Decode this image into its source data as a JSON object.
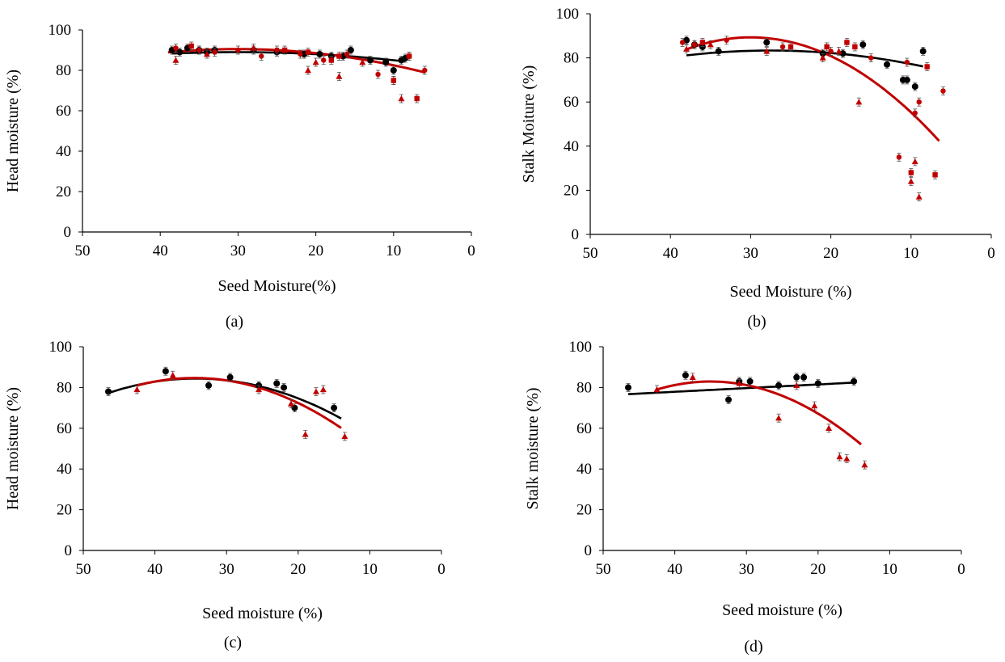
{
  "chart_data": [
    {
      "id": "a",
      "type": "scatter",
      "caption": "(a)",
      "xlabel": "Seed Moisture(%)",
      "ylabel": "Head moisture (%)",
      "xlim": [
        50,
        0
      ],
      "x_reversed": true,
      "ylim": [
        0,
        100
      ],
      "xticks": [
        "50",
        "40",
        "30",
        "20",
        "10",
        "0"
      ],
      "yticks": [
        "0",
        "20",
        "40",
        "60",
        "80",
        "100"
      ],
      "grid": false,
      "colors": {
        "black": "#000000",
        "red": "#c00000"
      },
      "series": [
        {
          "color": "black",
          "marker": "circle",
          "points": [
            [
              38.5,
              90
            ],
            [
              37.5,
              89
            ],
            [
              36.5,
              91
            ],
            [
              35,
              90
            ],
            [
              34,
              89
            ],
            [
              33,
              90
            ],
            [
              28,
              90
            ],
            [
              25,
              89
            ],
            [
              21.5,
              88
            ],
            [
              19.5,
              88
            ],
            [
              18,
              87
            ],
            [
              16.5,
              87
            ],
            [
              15.5,
              90
            ],
            [
              13,
              85
            ],
            [
              11,
              84
            ],
            [
              10,
              80
            ],
            [
              9,
              85
            ],
            [
              8.5,
              86
            ]
          ]
        },
        {
          "color": "red",
          "marker": "circle",
          "points": [
            [
              38,
              91
            ],
            [
              35,
              90
            ],
            [
              33,
              89
            ],
            [
              30,
              90
            ],
            [
              27,
              87
            ],
            [
              25,
              90
            ],
            [
              22,
              88
            ],
            [
              19,
              85
            ],
            [
              16,
              88
            ],
            [
              12,
              78
            ],
            [
              10,
              75
            ],
            [
              8,
              87
            ],
            [
              6,
              80
            ]
          ]
        },
        {
          "color": "red",
          "marker": "triangle",
          "points": [
            [
              38,
              85
            ],
            [
              34,
              88
            ],
            [
              28,
              91
            ],
            [
              21,
              80
            ],
            [
              20,
              84
            ],
            [
              17,
              77
            ],
            [
              14,
              84
            ],
            [
              9,
              66
            ]
          ]
        },
        {
          "color": "red",
          "marker": "square",
          "points": [
            [
              36,
              92
            ],
            [
              24,
              90
            ],
            [
              21,
              89
            ],
            [
              18,
              85
            ],
            [
              17,
              87
            ],
            [
              10,
              75
            ],
            [
              8,
              87
            ],
            [
              7,
              66
            ]
          ]
        }
      ],
      "fits": [
        {
          "color": "black",
          "x": [
            38.5,
            8.5
          ],
          "coef": [
            80.0,
            0.6,
            -0.01
          ]
        },
        {
          "color": "red",
          "x": [
            39,
            6
          ],
          "coef": [
            72.5,
            1.2,
            -0.02
          ]
        }
      ]
    },
    {
      "id": "b",
      "type": "scatter",
      "caption": "(b)",
      "xlabel": "Seed Moisture  (%)",
      "ylabel": "Stalk Moiture  (%)",
      "xlim": [
        50,
        0
      ],
      "x_reversed": true,
      "ylim": [
        0,
        100
      ],
      "xticks": [
        "50",
        "40",
        "30",
        "20",
        "10",
        "0"
      ],
      "yticks": [
        "0",
        "20",
        "40",
        "60",
        "80",
        "100"
      ],
      "grid": false,
      "colors": {
        "black": "#000000",
        "red": "#c00000"
      },
      "series": [
        {
          "color": "black",
          "marker": "circle",
          "points": [
            [
              38,
              88
            ],
            [
              37,
              86
            ],
            [
              36,
              85
            ],
            [
              34,
              83
            ],
            [
              28,
              87
            ],
            [
              21,
              82
            ],
            [
              18.5,
              82
            ],
            [
              16,
              86
            ],
            [
              13,
              77
            ],
            [
              11,
              70
            ],
            [
              10.5,
              70
            ],
            [
              9.5,
              67
            ],
            [
              8.5,
              83
            ]
          ]
        },
        {
          "color": "red",
          "marker": "circle",
          "points": [
            [
              38.5,
              87
            ],
            [
              37,
              86
            ],
            [
              33,
              88
            ],
            [
              26,
              85
            ],
            [
              20,
              83
            ],
            [
              15,
              80
            ],
            [
              11.5,
              35
            ],
            [
              10.5,
              78
            ],
            [
              9.5,
              55
            ],
            [
              9,
              60
            ],
            [
              6,
              65
            ]
          ]
        },
        {
          "color": "red",
          "marker": "triangle",
          "points": [
            [
              38,
              84
            ],
            [
              35,
              86
            ],
            [
              28,
              83
            ],
            [
              21,
              80
            ],
            [
              19,
              83
            ],
            [
              16.5,
              60
            ],
            [
              10,
              24
            ],
            [
              9.5,
              33
            ],
            [
              9,
              17
            ]
          ]
        },
        {
          "color": "red",
          "marker": "square",
          "points": [
            [
              36,
              87
            ],
            [
              25,
              85
            ],
            [
              20.5,
              85
            ],
            [
              18,
              87
            ],
            [
              17,
              85
            ],
            [
              10,
              28
            ],
            [
              8,
              76
            ],
            [
              7,
              27
            ]
          ]
        }
      ],
      "fits": [
        {
          "color": "black",
          "x": [
            38,
            8.5
          ],
          "coef": [
            68.2,
            1.1,
            -0.02
          ]
        },
        {
          "color": "red",
          "x": [
            38,
            6.5
          ],
          "coef": [
            12.8,
            5.1,
            -0.085
          ]
        }
      ]
    },
    {
      "id": "c",
      "type": "scatter",
      "caption": "(c)",
      "xlabel": "Seed moisture  (%)",
      "ylabel": "Head moisture  (%)",
      "xlim": [
        50,
        0
      ],
      "x_reversed": true,
      "ylim": [
        0,
        100
      ],
      "xticks": [
        "50",
        "40",
        "30",
        "20",
        "10",
        "0"
      ],
      "yticks": [
        "0",
        "20",
        "40",
        "60",
        "80",
        "100"
      ],
      "grid": false,
      "colors": {
        "black": "#000000",
        "red": "#c00000"
      },
      "series": [
        {
          "color": "black",
          "marker": "circle",
          "points": [
            [
              46.5,
              78
            ],
            [
              38.5,
              88
            ],
            [
              32.5,
              81
            ],
            [
              29.5,
              85
            ],
            [
              25.5,
              81
            ],
            [
              23,
              82
            ],
            [
              22,
              80
            ],
            [
              20.5,
              70
            ],
            [
              15,
              70
            ]
          ]
        },
        {
          "color": "red",
          "marker": "triangle",
          "points": [
            [
              42.5,
              79
            ],
            [
              37.5,
              86
            ],
            [
              25.5,
              79
            ],
            [
              21,
              72
            ],
            [
              19,
              57
            ],
            [
              17.5,
              78
            ],
            [
              16.5,
              79
            ],
            [
              13.5,
              56
            ]
          ]
        }
      ],
      "fits": [
        {
          "color": "black",
          "x": [
            46.5,
            14
          ],
          "coef": [
            28.4,
            3.265,
            -0.0476
          ]
        },
        {
          "color": "red",
          "x": [
            42.5,
            14
          ],
          "coef": [
            15.2,
            4.025,
            -0.0583
          ]
        }
      ]
    },
    {
      "id": "d",
      "type": "scatter",
      "caption": "(d)",
      "xlabel": "Seed moisture  (%)",
      "ylabel": "Stalk moisture  (%)",
      "xlim": [
        50,
        0
      ],
      "x_reversed": true,
      "ylim": [
        0,
        100
      ],
      "xticks": [
        "50",
        "40",
        "30",
        "20",
        "10",
        "0"
      ],
      "yticks": [
        "0",
        "20",
        "40",
        "60",
        "80",
        "100"
      ],
      "grid": false,
      "colors": {
        "black": "#000000",
        "red": "#c00000"
      },
      "series": [
        {
          "color": "black",
          "marker": "circle",
          "points": [
            [
              46.5,
              80
            ],
            [
              38.5,
              86
            ],
            [
              32.5,
              74
            ],
            [
              31,
              83
            ],
            [
              29.5,
              83
            ],
            [
              25.5,
              81
            ],
            [
              23,
              85
            ],
            [
              22,
              85
            ],
            [
              20,
              82
            ],
            [
              15,
              83
            ]
          ]
        },
        {
          "color": "red",
          "marker": "triangle",
          "points": [
            [
              42.5,
              79
            ],
            [
              37.5,
              85
            ],
            [
              31,
              82
            ],
            [
              25.5,
              65
            ],
            [
              23,
              81
            ],
            [
              20.5,
              71
            ],
            [
              18.5,
              60
            ],
            [
              17,
              46
            ],
            [
              16,
              45
            ],
            [
              13.5,
              42
            ]
          ]
        }
      ],
      "fits": [
        {
          "color": "black",
          "x": [
            46.5,
            15
          ],
          "coef": [
            85.1,
            -0.18,
            0.0
          ]
        },
        {
          "color": "red",
          "x": [
            42.5,
            14
          ],
          "coef": [
            -2.82,
            4.9,
            -0.07
          ]
        }
      ]
    }
  ]
}
